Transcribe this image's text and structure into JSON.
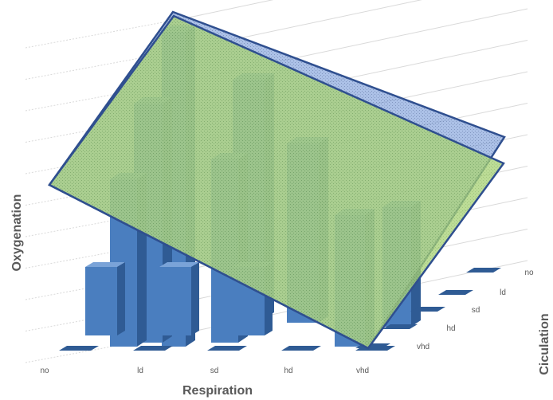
{
  "chart_data": {
    "type": "bar3d",
    "xlabel": "Respiration",
    "ylabel": "Oxygenation",
    "zlabel": "Ciculation",
    "x_categories": [
      "no",
      "ld",
      "sd",
      "hd",
      "vhd"
    ],
    "depth_categories": [
      "no",
      "ld",
      "sd",
      "hd",
      "vhd"
    ],
    "grid": true,
    "value_ticks_shown": false,
    "series": [
      {
        "depth": "vhd",
        "values": [
          0,
          0,
          0,
          0,
          0
        ]
      },
      {
        "depth": "hd",
        "values": [
          1.0,
          1.0,
          1.0,
          0,
          0
        ]
      },
      {
        "depth": "sd",
        "values": [
          0,
          0,
          0,
          0,
          0
        ]
      },
      {
        "depth": "ld",
        "values": [
          0,
          0,
          0,
          0,
          0
        ]
      },
      {
        "depth": "no",
        "values": [
          0,
          0,
          0,
          0,
          0
        ]
      }
    ],
    "approximate_bar_heights_note_free": [
      {
        "x": "no",
        "depth": "vhd",
        "value": 0
      },
      {
        "x": "ld",
        "depth": "vhd",
        "value": 0
      },
      {
        "x": "sd",
        "depth": "vhd",
        "value": 0
      },
      {
        "x": "hd",
        "depth": "vhd",
        "value": 0
      },
      {
        "x": "vhd",
        "depth": "vhd",
        "value": 0
      }
    ],
    "planes": 2,
    "colors": {
      "bar_front": "#4a7ebf",
      "bar_side": "#2f5b94",
      "bar_top": "#7aa3d8",
      "plane_blue": "#6f8fd0",
      "plane_green": "#9fcf6a",
      "plane_edge": "#2f4f8f",
      "grid": "#d9d9d9",
      "text": "#595959"
    }
  }
}
